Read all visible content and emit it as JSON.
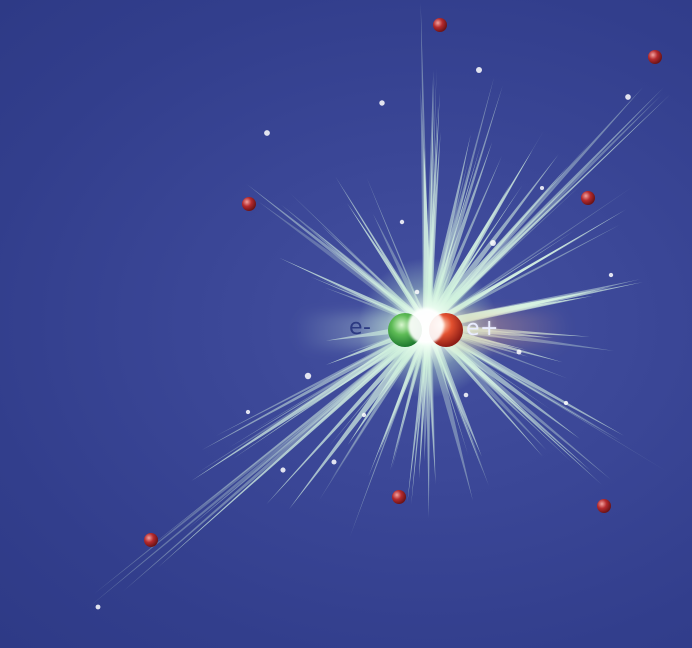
{
  "labels": {
    "electron": "e-",
    "positron": "e+"
  },
  "colors": {
    "background": "#3a4696",
    "ray": "#d8f5e4",
    "particle": "#b1262a",
    "electron": "#3fa64a",
    "positron": "#d8432a",
    "speck": "#ffffff"
  }
}
